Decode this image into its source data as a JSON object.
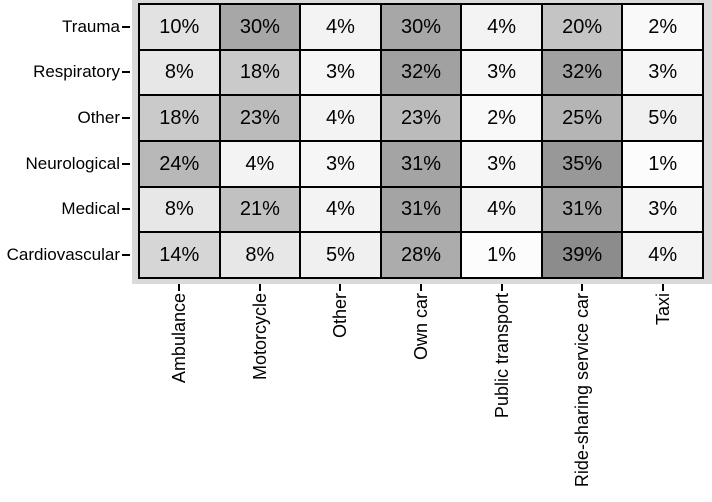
{
  "figure": {
    "background": "#ffffff",
    "text_color": "#000000"
  },
  "chart_data": {
    "type": "heatmap",
    "rows": [
      "Trauma",
      "Respiratory",
      "Other",
      "Neurological",
      "Medical",
      "Cardiovascular"
    ],
    "columns": [
      "Ambulance",
      "Motorcycle",
      "Other",
      "Own car",
      "Public transport",
      "Ride-sharing service car",
      "Taxi"
    ],
    "values": [
      [
        10,
        30,
        4,
        30,
        4,
        20,
        2
      ],
      [
        8,
        18,
        3,
        32,
        3,
        32,
        3
      ],
      [
        18,
        23,
        4,
        23,
        2,
        25,
        5
      ],
      [
        24,
        4,
        3,
        31,
        3,
        35,
        1
      ],
      [
        8,
        21,
        4,
        31,
        4,
        31,
        3
      ],
      [
        14,
        8,
        5,
        28,
        1,
        39,
        4
      ]
    ],
    "value_suffix": "%",
    "color_scale": {
      "low": "#ffffff",
      "high": "#8c8c8c",
      "domain": [
        0,
        39
      ]
    },
    "panel_background": "#d9d9d9",
    "cell_border_color": "#000000",
    "axis_tick_color": "#000000",
    "legend": "none",
    "gridlines": "off"
  }
}
